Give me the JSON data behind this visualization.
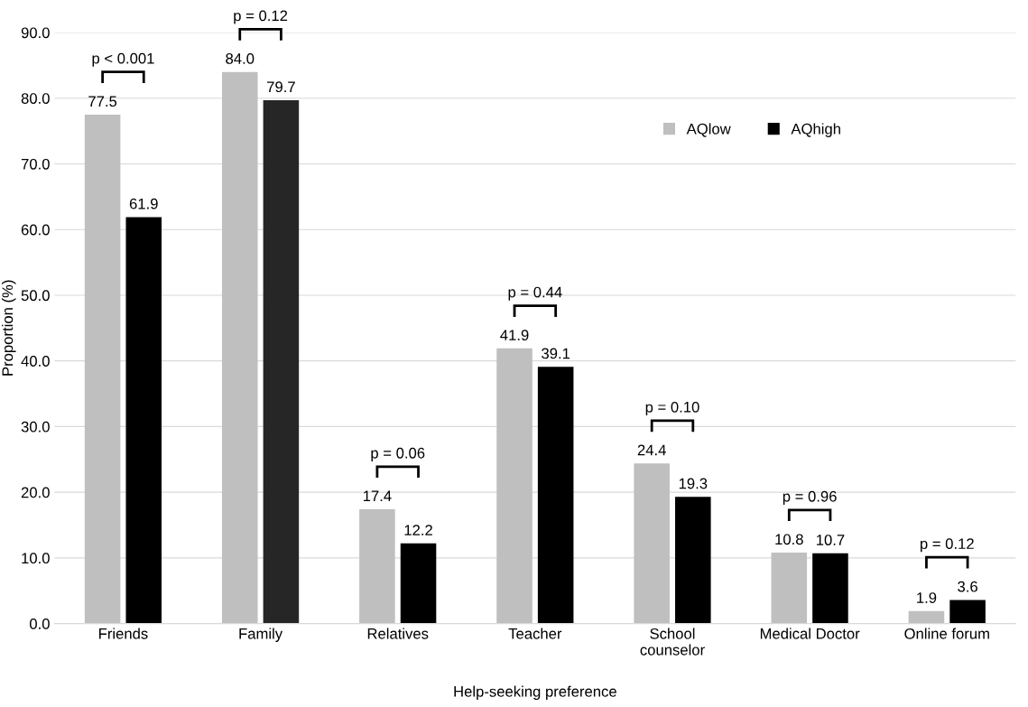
{
  "chart_data": {
    "type": "bar",
    "xlabel": "Help-seeking preference",
    "ylabel": "Proportion (%)",
    "categories": [
      "Friends",
      "Family",
      "Relatives",
      "Teacher",
      "School\ncounselor",
      "Medical Doctor",
      "Online forum"
    ],
    "series": [
      {
        "name": "AQlow",
        "color": "#bfbfbf",
        "values": [
          77.5,
          84.0,
          17.4,
          41.9,
          24.4,
          10.8,
          1.9
        ],
        "value_labels": [
          "77.5",
          "84.0",
          "17.4",
          "41.9",
          "24.4",
          "10.8",
          "1.9"
        ]
      },
      {
        "name": "AQhigh",
        "color": "#000000",
        "colors": [
          "#000000",
          "#262626",
          "#000000",
          "#000000",
          "#000000",
          "#000000",
          "#000000"
        ],
        "values": [
          61.9,
          79.7,
          12.2,
          39.1,
          19.3,
          10.7,
          3.6
        ],
        "value_labels": [
          "61.9",
          "79.7",
          "12.2",
          "39.1",
          "19.3",
          "10.7",
          "3.6"
        ]
      }
    ],
    "ylim": [
      0,
      90
    ],
    "yticks": [
      {
        "value": 0,
        "label": "0.0"
      },
      {
        "value": 10,
        "label": "10.0"
      },
      {
        "value": 20,
        "label": "20.0"
      },
      {
        "value": 30,
        "label": "30.0"
      },
      {
        "value": 40,
        "label": "40.0"
      },
      {
        "value": 50,
        "label": "50.0"
      },
      {
        "value": 60,
        "label": "60.0"
      },
      {
        "value": 70,
        "label": "70.0"
      },
      {
        "value": 80,
        "label": "80.0"
      },
      {
        "value": 90,
        "label": "90.0"
      }
    ],
    "grid": "y",
    "legend": "top right",
    "annotations": [
      "p < 0.001",
      "p = 0.12",
      "p = 0.06",
      "p = 0.44",
      "p = 0.10",
      "p = 0.96",
      "p = 0.12"
    ]
  }
}
